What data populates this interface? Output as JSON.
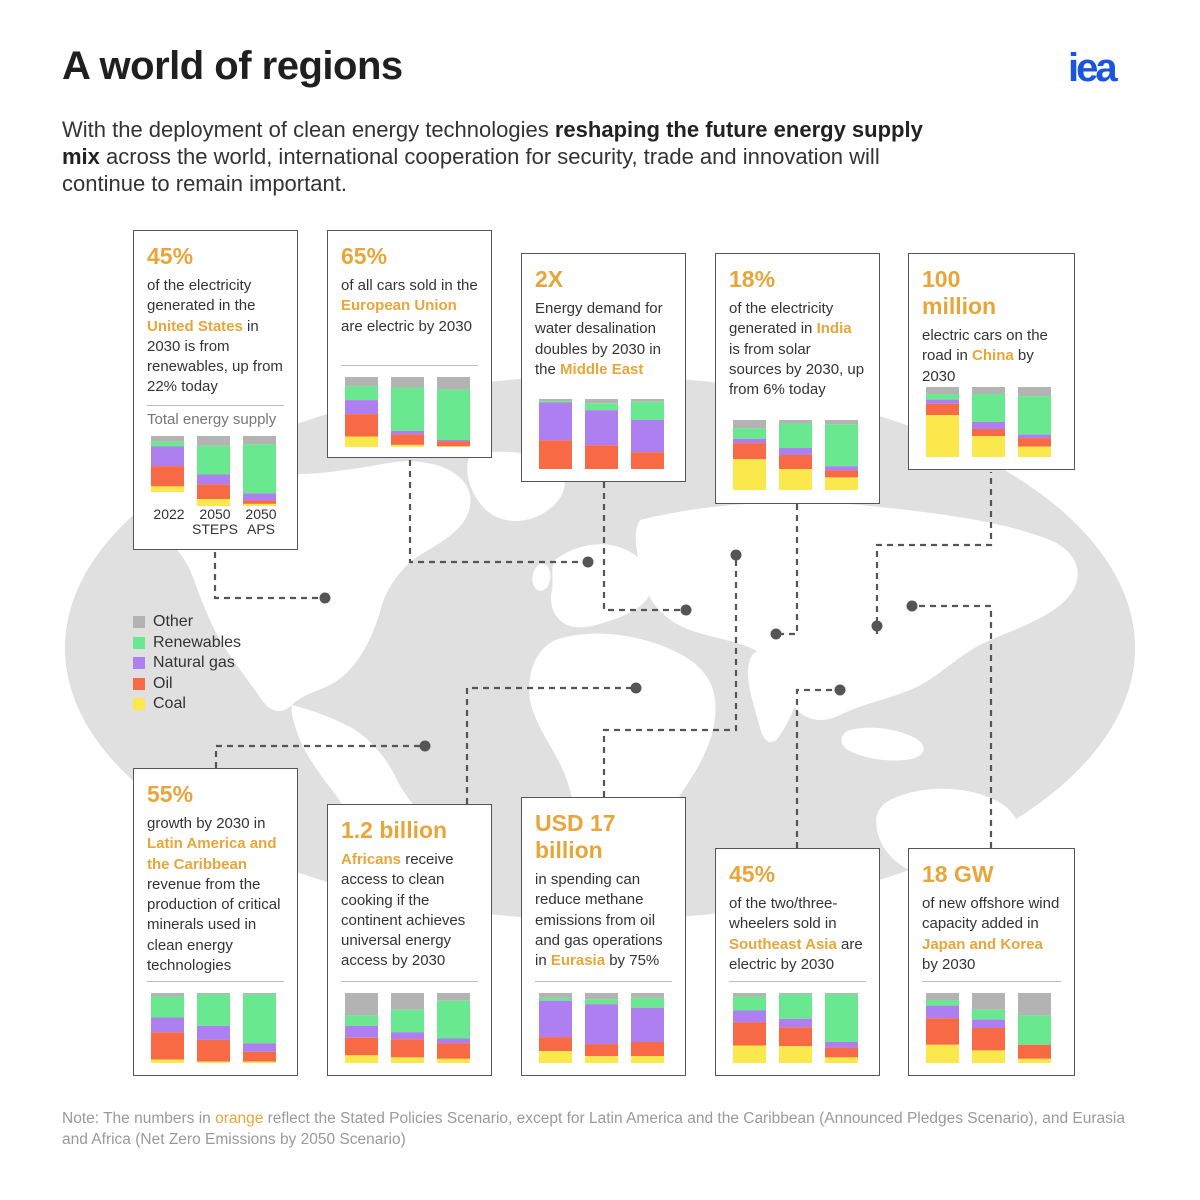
{
  "header": {
    "title": "A world of regions",
    "logo": "iea",
    "subtitle": [
      {
        "text": "With the deployment of clean energy technologies ",
        "bold": false
      },
      {
        "text": "reshaping the future energy supply mix",
        "bold": true
      },
      {
        "text": " across the world, international cooperation for security, trade and innovation will continue to remain important.",
        "bold": false
      }
    ]
  },
  "colors": {
    "Other": "#b3b3b3",
    "Renewables": "#69e88f",
    "Natural gas": "#ad7ff0",
    "Oil": "#f76a45",
    "Coal": "#fae84c",
    "accent": "#e8a53a"
  },
  "legend": [
    "Other",
    "Renewables",
    "Natural gas",
    "Oil",
    "Coal"
  ],
  "axis_labels": [
    "2022",
    "2050 STEPS",
    "2050 APS"
  ],
  "chart_caption": "Total energy supply",
  "cards": [
    {
      "id": "united-states",
      "big": "45%",
      "desc": [
        {
          "t": "of the electricity generated in the "
        },
        {
          "t": "United States",
          "hl": true
        },
        {
          "t": " in 2030 is from renewables, up from 22% today"
        }
      ],
      "bars": [
        [
          0.08,
          0.07,
          0.28,
          0.29,
          0.08
        ],
        [
          0.14,
          0.41,
          0.14,
          0.21,
          0.1
        ],
        [
          0.12,
          0.7,
          0.1,
          0.05,
          0.03
        ]
      ]
    },
    {
      "id": "european-union",
      "big": "65%",
      "desc": [
        {
          "t": "of all cars sold in the "
        },
        {
          "t": "European Union",
          "hl": true
        },
        {
          "t": " are electric by 2030"
        }
      ],
      "bars": [
        [
          0.13,
          0.2,
          0.2,
          0.32,
          0.15
        ],
        [
          0.15,
          0.62,
          0.05,
          0.15,
          0.03
        ],
        [
          0.18,
          0.72,
          0.02,
          0.07,
          0.01
        ]
      ]
    },
    {
      "id": "middle-east",
      "big": "2X",
      "desc": [
        {
          "t": "Energy demand for water desalination doubles by 2030 in the "
        },
        {
          "t": "Middle East",
          "hl": true
        }
      ],
      "bars": [
        [
          0.03,
          0.02,
          0.54,
          0.41,
          0.0
        ],
        [
          0.06,
          0.1,
          0.5,
          0.34,
          0.0
        ],
        [
          0.04,
          0.26,
          0.46,
          0.24,
          0.0
        ]
      ]
    },
    {
      "id": "india",
      "big": "18%",
      "desc": [
        {
          "t": "of the electricity generated in "
        },
        {
          "t": "India",
          "hl": true
        },
        {
          "t": " is from solar sources by 2030, up from 6% today"
        }
      ],
      "bars": [
        [
          0.12,
          0.15,
          0.06,
          0.23,
          0.44
        ],
        [
          0.05,
          0.35,
          0.1,
          0.2,
          0.3
        ],
        [
          0.06,
          0.6,
          0.06,
          0.1,
          0.18
        ]
      ]
    },
    {
      "id": "china",
      "big": "100 million",
      "desc": [
        {
          "t": "electric cars on the road in "
        },
        {
          "t": "China",
          "hl": true
        },
        {
          "t": " by 2030"
        }
      ],
      "bars": [
        [
          0.1,
          0.08,
          0.06,
          0.16,
          0.6
        ],
        [
          0.1,
          0.4,
          0.1,
          0.1,
          0.3
        ],
        [
          0.13,
          0.55,
          0.05,
          0.12,
          0.15
        ]
      ]
    },
    {
      "id": "latin-america",
      "big": "55%",
      "desc": [
        {
          "t": "growth by 2030 in "
        },
        {
          "t": "Latin America and the Caribbean",
          "hl": true
        },
        {
          "t": " revenue from the production of critical minerals used in clean energy technologies"
        }
      ],
      "bars": [
        [
          0.05,
          0.3,
          0.21,
          0.39,
          0.05
        ],
        [
          0.02,
          0.45,
          0.2,
          0.31,
          0.02
        ],
        [
          0.02,
          0.7,
          0.12,
          0.14,
          0.02
        ]
      ]
    },
    {
      "id": "africa",
      "big": "1.2 billion",
      "desc": [
        {
          "t": "Africans",
          "hl": true
        },
        {
          "t": " receive access to clean cooking if the continent achieves universal energy access by 2030"
        }
      ],
      "bars": [
        [
          0.32,
          0.15,
          0.17,
          0.25,
          0.11
        ],
        [
          0.24,
          0.32,
          0.1,
          0.26,
          0.08
        ],
        [
          0.11,
          0.54,
          0.07,
          0.22,
          0.06
        ]
      ]
    },
    {
      "id": "eurasia",
      "big": "USD 17 billion",
      "desc": [
        {
          "t": "in spending can reduce methane emissions from oil and gas operations in "
        },
        {
          "t": "Eurasia",
          "hl": true
        },
        {
          "t": " by 75%"
        }
      ],
      "bars": [
        [
          0.07,
          0.04,
          0.52,
          0.2,
          0.17
        ],
        [
          0.09,
          0.07,
          0.57,
          0.17,
          0.1
        ],
        [
          0.07,
          0.14,
          0.49,
          0.2,
          0.1
        ]
      ]
    },
    {
      "id": "southeast-asia",
      "big": "45%",
      "desc": [
        {
          "t": "of the two/three-wheelers sold in "
        },
        {
          "t": "Southeast Asia",
          "hl": true
        },
        {
          "t": " are electric by 2030"
        }
      ],
      "bars": [
        [
          0.05,
          0.2,
          0.17,
          0.33,
          0.25
        ],
        [
          0.02,
          0.35,
          0.12,
          0.27,
          0.24
        ],
        [
          0.02,
          0.68,
          0.08,
          0.14,
          0.08
        ]
      ]
    },
    {
      "id": "japan-korea",
      "big": "18 GW",
      "desc": [
        {
          "t": "of new offshore wind capacity added in "
        },
        {
          "t": "Japan and Korea",
          "hl": true
        },
        {
          "t": " by 2030"
        }
      ],
      "bars": [
        [
          0.1,
          0.08,
          0.18,
          0.38,
          0.26
        ],
        [
          0.24,
          0.14,
          0.12,
          0.32,
          0.18
        ],
        [
          0.32,
          0.42,
          0.0,
          0.2,
          0.06
        ]
      ]
    }
  ],
  "note": [
    {
      "text": "Note: The numbers in ",
      "hl": false
    },
    {
      "text": "orange",
      "hl": true
    },
    {
      "text": " reflect the Stated Policies Scenario, except for Latin America and the Caribbean (Announced Pledges Scenario), and Eurasia and Africa (Net Zero Emissions by 2050 Scenario)",
      "hl": false
    }
  ]
}
